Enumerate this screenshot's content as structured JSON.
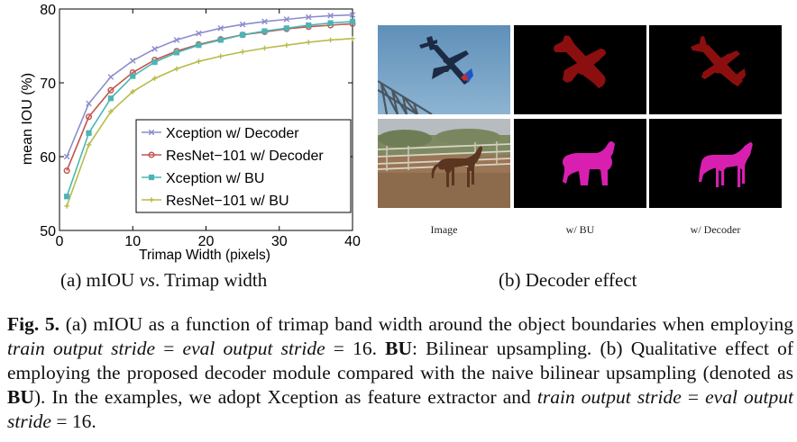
{
  "subfigure_a": {
    "label": "(a) mIOU ",
    "label_em": "vs",
    "label_tail": ". Trimap width"
  },
  "subfigure_b": {
    "label": "(b) Decoder effect",
    "column_labels": [
      "Image",
      "w/ BU",
      "w/ Decoder"
    ]
  },
  "caption": {
    "fig_label": "Fig. 5.",
    "seg1": " (a) mIOU as a function of trimap band width around the object boundaries when employing ",
    "em1": "train output stride",
    "seg2": " = ",
    "em2": "eval output stride",
    "seg3": " = 16. ",
    "bold1": "BU",
    "seg4": ": Bilinear upsampling. (b) Qualitative effect of employing the proposed decoder module compared with the naive bilinear upsampling (denoted as ",
    "bold2": "BU",
    "seg5": "). In the examples, we adopt Xception as feature extractor and ",
    "em3": "train output stride",
    "seg6": " = ",
    "em4": "eval output stride",
    "seg7": " = 16."
  },
  "colors": {
    "xception_decoder": "#8c8ccd",
    "resnet_decoder": "#c2544e",
    "xception_bu": "#4bb5b5",
    "resnet_bu": "#b7bc4a",
    "segment_plane": "#8b0f0f",
    "segment_horse": "#d81fb0"
  },
  "chart_data": {
    "type": "line",
    "xlabel": "Trimap Width (pixels)",
    "ylabel": "mean IOU (%)",
    "xlim": [
      0,
      40
    ],
    "ylim": [
      50,
      80
    ],
    "xticks": [
      0,
      10,
      20,
      30,
      40
    ],
    "yticks": [
      50,
      60,
      70,
      80
    ],
    "grid": false,
    "legend_position": "lower-right",
    "x": [
      1,
      4,
      7,
      10,
      13,
      16,
      19,
      22,
      25,
      28,
      31,
      34,
      37,
      40
    ],
    "series": [
      {
        "name": "Xception w/ Decoder",
        "marker": "x",
        "values": [
          60.0,
          67.2,
          70.8,
          73.0,
          74.6,
          75.8,
          76.7,
          77.4,
          77.9,
          78.3,
          78.6,
          78.9,
          79.1,
          79.2
        ]
      },
      {
        "name": "ResNet−101 w/ Decoder",
        "marker": "o",
        "values": [
          58.1,
          65.4,
          69.0,
          71.4,
          73.1,
          74.3,
          75.2,
          75.9,
          76.5,
          76.9,
          77.3,
          77.6,
          77.8,
          78.0
        ]
      },
      {
        "name": "Xception w/ BU",
        "marker": "s",
        "values": [
          54.6,
          63.2,
          67.9,
          70.9,
          72.8,
          74.1,
          75.1,
          75.8,
          76.5,
          77.0,
          77.4,
          77.8,
          78.1,
          78.3
        ]
      },
      {
        "name": "ResNet−101 w/ BU",
        "marker": "+",
        "values": [
          53.3,
          61.6,
          66.1,
          68.8,
          70.6,
          71.9,
          72.9,
          73.6,
          74.2,
          74.7,
          75.1,
          75.5,
          75.8,
          76.0
        ]
      }
    ]
  }
}
